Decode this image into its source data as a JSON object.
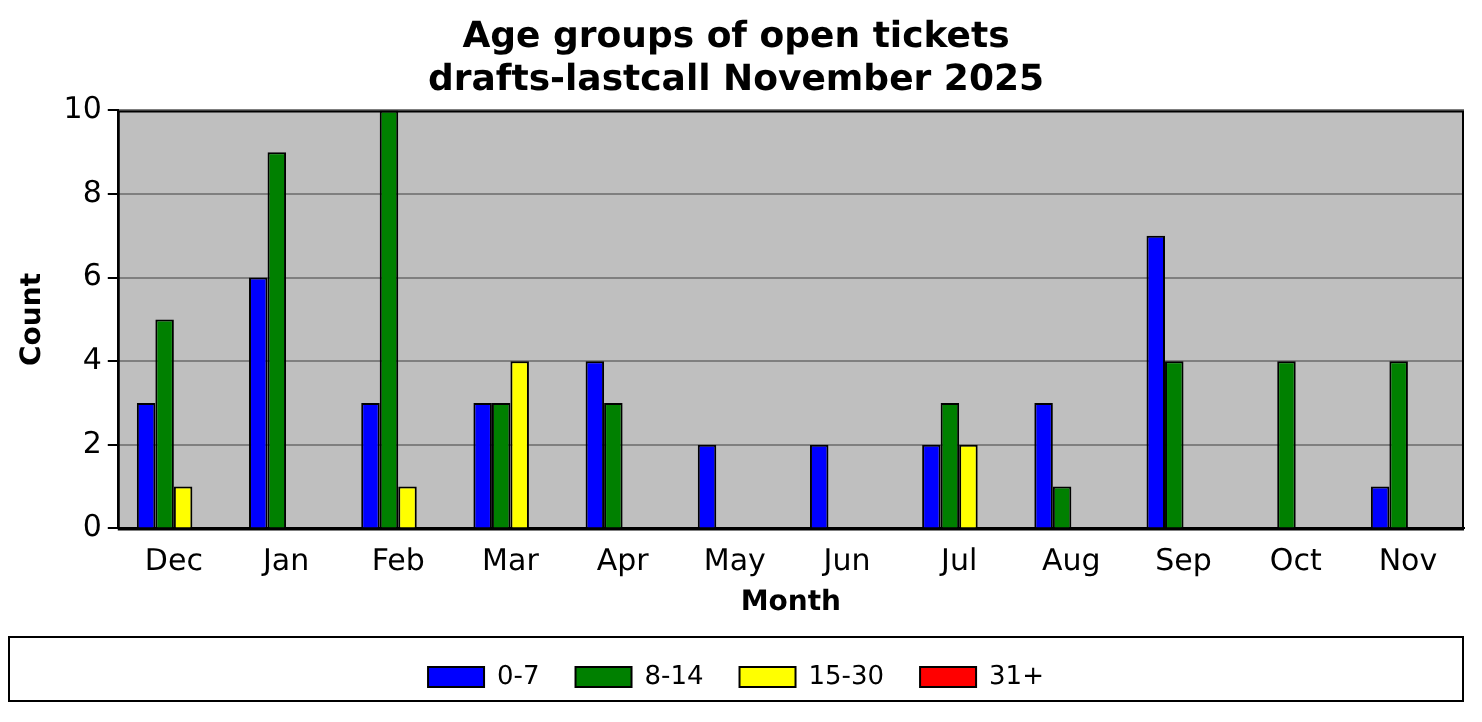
{
  "chart_data": {
    "type": "bar",
    "title": [
      "Age groups of open tickets",
      "drafts-lastcall November 2025"
    ],
    "xlabel": "Month",
    "ylabel": "Count",
    "categories": [
      "Dec",
      "Jan",
      "Feb",
      "Mar",
      "Apr",
      "May",
      "Jun",
      "Jul",
      "Aug",
      "Sep",
      "Oct",
      "Nov"
    ],
    "series": [
      {
        "name": "0-7",
        "color": "#0000ff",
        "values": [
          3,
          6,
          3,
          3,
          4,
          2,
          2,
          2,
          3,
          7,
          0,
          1
        ]
      },
      {
        "name": "8-14",
        "color": "#008000",
        "values": [
          5,
          9,
          10,
          3,
          3,
          0,
          0,
          3,
          1,
          4,
          4,
          4
        ]
      },
      {
        "name": "15-30",
        "color": "#ffff00",
        "values": [
          1,
          0,
          1,
          4,
          0,
          0,
          0,
          2,
          0,
          0,
          0,
          0
        ]
      },
      {
        "name": "31+",
        "color": "#ff0000",
        "values": [
          0,
          0,
          0,
          0,
          0,
          0,
          0,
          0,
          0,
          0,
          0,
          0
        ]
      }
    ],
    "ylim": [
      0,
      10
    ],
    "yticks": [
      0,
      2,
      4,
      6,
      8,
      10
    ],
    "grid": "y",
    "legend": "bottom"
  }
}
